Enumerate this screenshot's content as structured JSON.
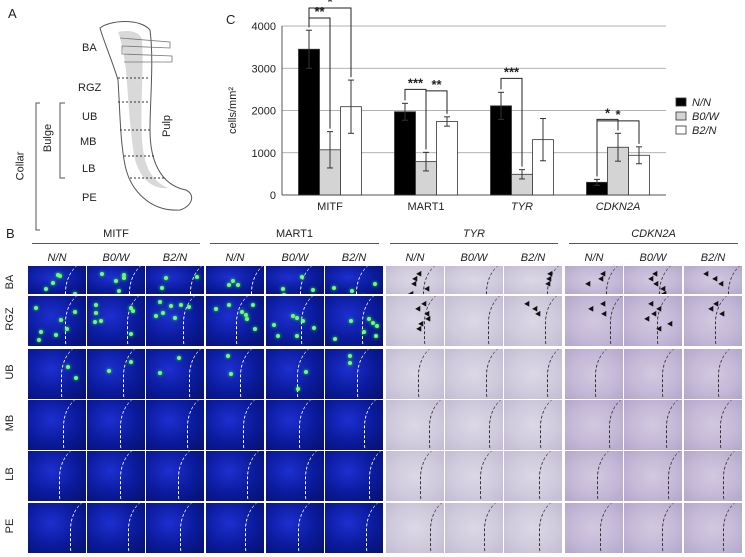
{
  "panels": {
    "a": "A",
    "b": "B",
    "c": "C"
  },
  "diagram": {
    "regions": [
      "BA",
      "RGZ",
      "UB",
      "MB",
      "LB",
      "PE"
    ],
    "bulge": "Bulge",
    "collar": "Collar",
    "pulp": "Pulp"
  },
  "chart_data": {
    "type": "bar",
    "categories": [
      "MITF",
      "MART1",
      "TYR",
      "CDKN2A"
    ],
    "italic_categories": [
      "TYR",
      "CDKN2A"
    ],
    "series": [
      {
        "name": "N/N",
        "color": "#000000",
        "values": [
          3450,
          1970,
          2110,
          300
        ],
        "err": [
          450,
          200,
          320,
          70
        ]
      },
      {
        "name": "B0/W",
        "color": "#d4d4d4",
        "values": [
          1070,
          790,
          490,
          1130
        ],
        "err": [
          430,
          220,
          110,
          330
        ]
      },
      {
        "name": "B2/N",
        "color": "#ffffff",
        "values": [
          2090,
          1740,
          1310,
          940
        ],
        "err": [
          630,
          110,
          500,
          200
        ]
      }
    ],
    "ylabel": "cells/mm²",
    "ylim": [
      0,
      4000
    ],
    "yticks": [
      0,
      1000,
      2000,
      3000,
      4000
    ],
    "ytick_labels": [
      "0",
      "1000",
      "2000",
      "3000",
      "4000"
    ],
    "grid": true,
    "legend": "right",
    "significance": [
      {
        "category": "MITF",
        "from": "N/N",
        "to": "B0/W",
        "label": "**"
      },
      {
        "category": "MITF",
        "from": "N/N",
        "to": "B2/N",
        "label": "*"
      },
      {
        "category": "MART1",
        "from": "N/N",
        "to": "B0/W",
        "label": "***"
      },
      {
        "category": "MART1",
        "from": "B0/W",
        "to": "B2/N",
        "label": "**"
      },
      {
        "category": "TYR",
        "from": "N/N",
        "to": "B0/W",
        "label": "***"
      },
      {
        "category": "CDKN2A",
        "from": "N/N",
        "to": "B0/W",
        "label": "*"
      },
      {
        "category": "CDKN2A",
        "from": "N/N",
        "to": "B2/N",
        "label": "*"
      }
    ]
  },
  "grid_panel": {
    "groups": [
      {
        "title": "MITF",
        "italic": false
      },
      {
        "title": "MART1",
        "italic": false
      },
      {
        "title": "TYR",
        "italic": true
      },
      {
        "title": "CDKN2A",
        "italic": true
      }
    ],
    "columns": [
      "N/N",
      "B0/W",
      "B2/N"
    ],
    "rows": [
      "BA",
      "RGZ",
      "UB",
      "MB",
      "LB",
      "PE"
    ]
  }
}
